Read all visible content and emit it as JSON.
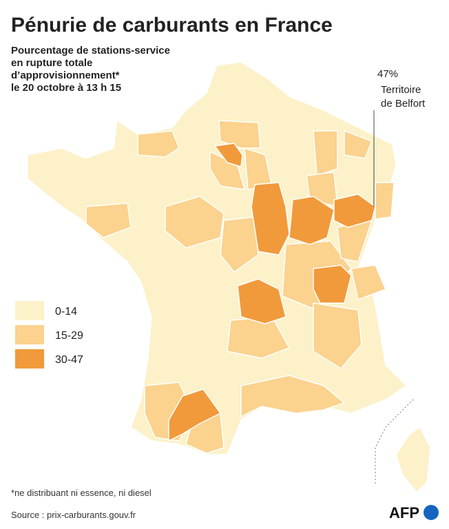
{
  "title": "Pénurie de carburants en France",
  "subtitle": [
    "Pourcentage de stations-service",
    "en rupture totale",
    "d’approvisionnement*",
    "le 20 octobre à 13 h 15"
  ],
  "annotation": {
    "value": "47%",
    "label": [
      "Territoire",
      "de Belfort"
    ]
  },
  "legend": [
    {
      "label": "0-14",
      "color": "#fcf1c8"
    },
    {
      "label": "15-29",
      "color": "#fbd28e"
    },
    {
      "label": "30-47",
      "color": "#f19a3b"
    }
  ],
  "footnote": "*ne distribuant ni essence, ni diesel",
  "source": "Source : prix-carburants.gouv.fr",
  "logo": "AFP"
}
